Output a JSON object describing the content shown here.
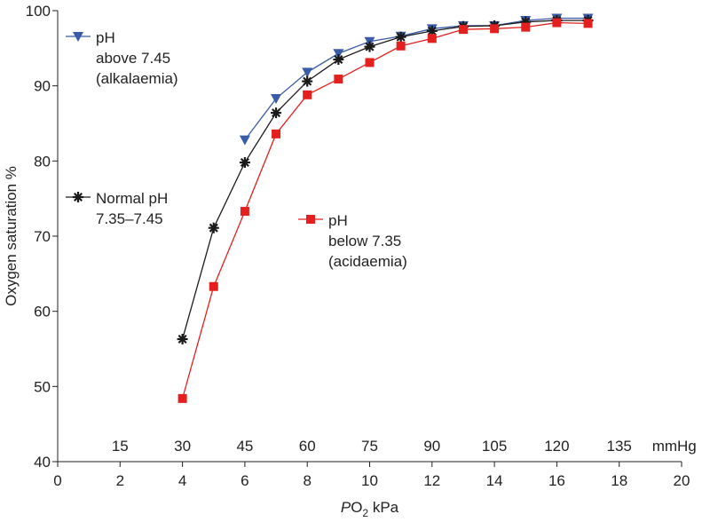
{
  "chart_data": {
    "type": "line",
    "title": "",
    "xlabel": {
      "prefix": "P",
      "sub": "O",
      "subscript": "2",
      "unit": " kPa"
    },
    "ylabel": "Oxygen saturation %",
    "xlim": [
      0,
      20
    ],
    "ylim": [
      40,
      100
    ],
    "x_ticks": [
      "0",
      "2",
      "4",
      "6",
      "8",
      "10",
      "12",
      "14",
      "16",
      "18",
      "20"
    ],
    "y_ticks": [
      "40",
      "50",
      "60",
      "70",
      "80",
      "90",
      "100"
    ],
    "secondary_x_ticks": [
      {
        "kpa": 2,
        "label": "15"
      },
      {
        "kpa": 4,
        "label": "30"
      },
      {
        "kpa": 6,
        "label": "45"
      },
      {
        "kpa": 8,
        "label": "60"
      },
      {
        "kpa": 10,
        "label": "75"
      },
      {
        "kpa": 12,
        "label": "90"
      },
      {
        "kpa": 14,
        "label": "105"
      },
      {
        "kpa": 16,
        "label": "120"
      },
      {
        "kpa": 18,
        "label": "135"
      }
    ],
    "secondary_x_unit": "mmHg",
    "grid": false,
    "series": [
      {
        "id": "alkalaemia",
        "legend_lines": [
          "pH",
          "above 7.45",
          "(alkalaemia)"
        ],
        "color": "#3a5ba8",
        "marker": "triangle-down",
        "x": [
          6,
          7,
          8,
          9,
          10,
          11,
          12,
          13,
          14,
          15,
          16,
          17
        ],
        "y": [
          82.8,
          88.3,
          91.8,
          94.3,
          95.9,
          96.6,
          97.6,
          98.0,
          98.0,
          98.7,
          99.0,
          99.0
        ]
      },
      {
        "id": "normal",
        "legend_lines": [
          "Normal pH",
          "7.35–7.45"
        ],
        "color": "#1a1a1a",
        "marker": "asterisk",
        "x": [
          4,
          5,
          6,
          7,
          8,
          9,
          10,
          11,
          12,
          13,
          14,
          15,
          16,
          17
        ],
        "y": [
          56.3,
          71.1,
          79.8,
          86.4,
          90.6,
          93.5,
          95.2,
          96.5,
          97.3,
          97.9,
          98.0,
          98.5,
          98.7,
          98.7
        ]
      },
      {
        "id": "acidaemia",
        "legend_lines": [
          "pH",
          "below 7.35",
          "(acidaemia)"
        ],
        "color": "#e3201e",
        "marker": "square",
        "x": [
          4,
          5,
          6,
          7,
          8,
          9,
          10,
          11,
          12,
          13,
          14,
          15,
          16,
          17
        ],
        "y": [
          48.4,
          63.3,
          73.3,
          83.6,
          88.8,
          90.9,
          93.1,
          95.3,
          96.3,
          97.5,
          97.6,
          97.8,
          98.4,
          98.3
        ]
      }
    ],
    "legend_placement": "inside-plot"
  }
}
